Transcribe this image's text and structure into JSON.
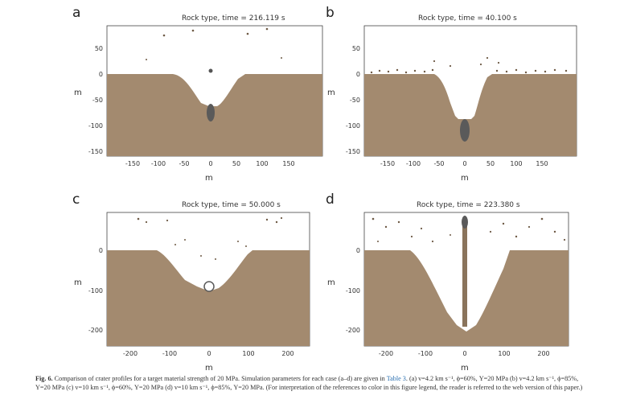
{
  "colors": {
    "ground": "#a38a6f",
    "ejecta": "#6e5a45",
    "core": "#5a5a5a",
    "link": "#2a6fb0"
  },
  "figure": {
    "panels": [
      {
        "letter": "a",
        "title": "Rock type, time = 216.119 s",
        "xlabel": "m",
        "ylabel": "m",
        "xticks": [
          "-150",
          "-100",
          "-50",
          "0",
          "50",
          "100",
          "150"
        ],
        "yticks": [
          "50",
          "0",
          "-50",
          "-100",
          "-150"
        ]
      },
      {
        "letter": "b",
        "title": "Rock type, time =  40.100 s",
        "xlabel": "m",
        "ylabel": "m",
        "xticks": [
          "-150",
          "-100",
          "-50",
          "0",
          "50",
          "100",
          "150"
        ],
        "yticks": [
          "50",
          "0",
          "-50",
          "-100",
          "-150"
        ]
      },
      {
        "letter": "c",
        "title": "Rock type, time =  50.000 s",
        "xlabel": "m",
        "ylabel": "m",
        "xticks": [
          "-200",
          "-100",
          "0",
          "100",
          "200"
        ],
        "yticks": [
          "0",
          "-100",
          "-200"
        ]
      },
      {
        "letter": "d",
        "title": "Rock type, time = 223.380 s",
        "xlabel": "m",
        "ylabel": "m",
        "xticks": [
          "-200",
          "-100",
          "0",
          "100",
          "200"
        ],
        "yticks": [
          "0",
          "-100",
          "-200"
        ]
      }
    ],
    "caption": {
      "fig_label": "Fig. 6.",
      "text_before_ref": "Comparison of crater profiles for a target material strength of 20 MPa. Simulation parameters for each case (a–d) are given in ",
      "ref": "Table 3",
      "text_after_ref": ". (a) v=4.2 km s⁻¹, ϕ=60%, Y=20 MPa (b) v=4.2 km s⁻¹, ϕ=85%, Y=20 MPa (c) v=10 km s⁻¹, ϕ=60%, Y=20 MPa (d) v=10 km s⁻¹, ϕ=85%, Y=20 MPa. (For interpretation of the references to color in this figure legend, the reader is referred to the web version of this paper.)"
    }
  }
}
